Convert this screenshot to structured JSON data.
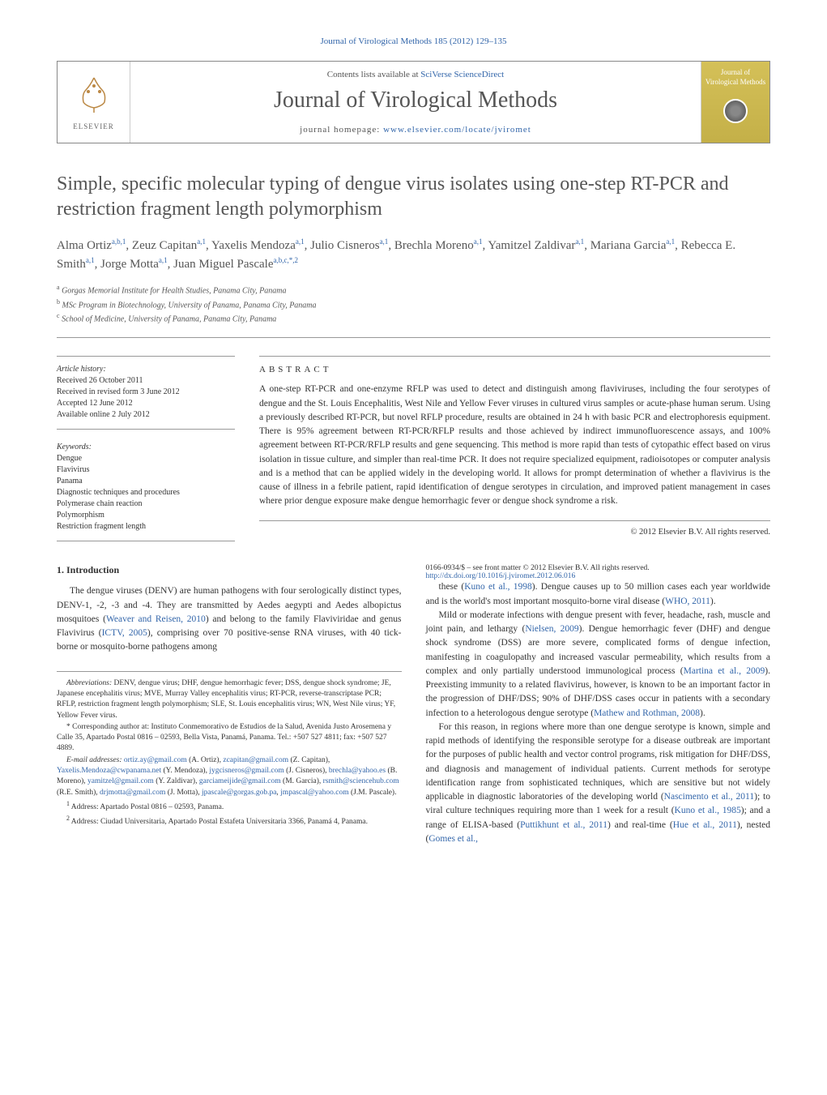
{
  "header": {
    "citation": "Journal of Virological Methods 185 (2012) 129–135",
    "contents_prefix": "Contents lists available at ",
    "contents_link": "SciVerse ScienceDirect",
    "journal_name": "Journal of Virological Methods",
    "homepage_prefix": "journal homepage: ",
    "homepage_link": "www.elsevier.com/locate/jviromet",
    "elsevier_label": "ELSEVIER",
    "cover_text": "Journal of Virological Methods"
  },
  "title": "Simple, specific molecular typing of dengue virus isolates using one-step RT-PCR and restriction fragment length polymorphism",
  "authors_html": "Alma Ortiz<sup>a,b,1</sup>, Zeuz Capitan<sup>a,1</sup>, Yaxelis Mendoza<sup>a,1</sup>, Julio Cisneros<sup>a,1</sup>, Brechla Moreno<sup>a,1</sup>, Yamitzel Zaldivar<sup>a,1</sup>, Mariana Garcia<sup>a,1</sup>, Rebecca E. Smith<sup>a,1</sup>, Jorge Motta<sup>a,1</sup>, Juan Miguel Pascale<sup>a,b,c,*,2</sup>",
  "affiliations": [
    {
      "sup": "a",
      "text": "Gorgas Memorial Institute for Health Studies, Panama City, Panama"
    },
    {
      "sup": "b",
      "text": "MSc Program in Biotechnology, University of Panama, Panama City, Panama"
    },
    {
      "sup": "c",
      "text": "School of Medicine, University of Panama, Panama City, Panama"
    }
  ],
  "article_history": {
    "label": "Article history:",
    "received": "Received 26 October 2011",
    "revised": "Received in revised form 3 June 2012",
    "accepted": "Accepted 12 June 2012",
    "online": "Available online 2 July 2012"
  },
  "keywords": {
    "label": "Keywords:",
    "items": [
      "Dengue",
      "Flavivirus",
      "Panama",
      "Diagnostic techniques and procedures",
      "Polymerase chain reaction",
      "Polymorphism",
      "Restriction fragment length"
    ]
  },
  "abstract": {
    "heading": "ABSTRACT",
    "text": "A one-step RT-PCR and one-enzyme RFLP was used to detect and distinguish among flaviviruses, including the four serotypes of dengue and the St. Louis Encephalitis, West Nile and Yellow Fever viruses in cultured virus samples or acute-phase human serum. Using a previously described RT-PCR, but novel RFLP procedure, results are obtained in 24 h with basic PCR and electrophoresis equipment. There is 95% agreement between RT-PCR/RFLP results and those achieved by indirect immunofluorescence assays, and 100% agreement between RT-PCR/RFLP results and gene sequencing. This method is more rapid than tests of cytopathic effect based on virus isolation in tissue culture, and simpler than real-time PCR. It does not require specialized equipment, radioisotopes or computer analysis and is a method that can be applied widely in the developing world. It allows for prompt determination of whether a flavivirus is the cause of illness in a febrile patient, rapid identification of dengue serotypes in circulation, and improved patient management in cases where prior dengue exposure make dengue hemorrhagic fever or dengue shock syndrome a risk.",
    "copyright": "© 2012 Elsevier B.V. All rights reserved."
  },
  "intro": {
    "heading": "1. Introduction",
    "p1_pre": "The dengue viruses (DENV) are human pathogens with four serologically distinct types, DENV-1, -2, -3 and -4. They are transmitted by Aedes aegypti and Aedes albopictus mosquitoes (",
    "p1_link1": "Weaver and Reisen, 2010",
    "p1_mid1": ") and belong to the family Flaviviridae and genus Flavivirus (",
    "p1_link2": "ICTV, 2005",
    "p1_mid2": "), comprising over 70 positive-sense RNA viruses, with 40 tick-borne or mosquito-borne pathogens among ",
    "p1_cont": "these (",
    "p1_link3": "Kuno et al., 1998",
    "p1_mid3": "). Dengue causes up to 50 million cases each year worldwide and is the world's most important mosquito-borne viral disease (",
    "p1_link4": "WHO, 2011",
    "p1_end": ").",
    "p2_pre": "Mild or moderate infections with dengue present with fever, headache, rash, muscle and joint pain, and lethargy (",
    "p2_link1": "Nielsen, 2009",
    "p2_mid1": "). Dengue hemorrhagic fever (DHF) and dengue shock syndrome (DSS) are more severe, complicated forms of dengue infection, manifesting in coagulopathy and increased vascular permeability, which results from a complex and only partially understood immunological process (",
    "p2_link2": "Martina et al., 2009",
    "p2_mid2": "). Preexisting immunity to a related flavivirus, however, is known to be an important factor in the progression of DHF/DSS; 90% of DHF/DSS cases occur in patients with a secondary infection to a heterologous dengue serotype (",
    "p2_link3": "Mathew and Rothman, 2008",
    "p2_end": ").",
    "p3_pre": "For this reason, in regions where more than one dengue serotype is known, simple and rapid methods of identifying the responsible serotype for a disease outbreak are important for the purposes of public health and vector control programs, risk mitigation for DHF/DSS, and diagnosis and management of individual patients. Current methods for serotype identification range from sophisticated techniques, which are sensitive but not widely applicable in diagnostic laboratories of the developing world (",
    "p3_link1": "Nascimento et al., 2011",
    "p3_mid1": "); to viral culture techniques requiring more than 1 week for a result (",
    "p3_link2": "Kuno et al., 1985",
    "p3_mid2": "); and a range of ELISA-based (",
    "p3_link3": "Puttikhunt et al., 2011",
    "p3_mid3": ") and real-time (",
    "p3_link4": "Hue et al., 2011",
    "p3_mid4": "), nested (",
    "p3_link5": "Gomes et al.,"
  },
  "footnotes": {
    "abbr_label": "Abbreviations:",
    "abbr_text": " DENV, dengue virus; DHF, dengue hemorrhagic fever; DSS, dengue shock syndrome; JE, Japanese encephalitis virus; MVE, Murray Valley encephalitis virus; RT-PCR, reverse-transcriptase PCR; RFLP, restriction fragment length polymorphism; SLE, St. Louis encephalitis virus; WN, West Nile virus; YF, Yellow Fever virus.",
    "corr_label": "* Corresponding author at:",
    "corr_text": " Instituto Conmemorativo de Estudios de la Salud, Avenida Justo Arosemena y Calle 35, Apartado Postal 0816 – 02593, Bella Vista, Panamá, Panama. Tel.: +507 527 4811; fax: +507 527 4889.",
    "email_label": "E-mail addresses:",
    "emails": [
      {
        "addr": "ortiz.ay@gmail.com",
        "who": " (A. Ortiz), "
      },
      {
        "addr": "zcapitan@gmail.com",
        "who": " (Z. Capitan), "
      },
      {
        "addr": "Yaxelis.Mendoza@cwpanama.net",
        "who": " (Y. Mendoza), "
      },
      {
        "addr": "jygcisneros@gmail.com",
        "who": " (J. Cisneros), "
      },
      {
        "addr": "brechla@yahoo.es",
        "who": " (B. Moreno), "
      },
      {
        "addr": "yamitzel@gmail.com",
        "who": " (Y. Zaldivar), "
      },
      {
        "addr": "garciameijide@gmail.com",
        "who": " (M. Garcia), "
      },
      {
        "addr": "rsmith@sciencehub.com",
        "who": " (R.E. Smith), "
      },
      {
        "addr": "drjmotta@gmail.com",
        "who": " (J. Motta), "
      },
      {
        "addr": "jpascale@gorgas.gob.pa",
        "who": ", "
      },
      {
        "addr": "jmpascal@yahoo.com",
        "who": " (J.M. Pascale)."
      }
    ],
    "addr1_label": "1",
    "addr1": " Address: Apartado Postal 0816 – 02593, Panama.",
    "addr2_label": "2",
    "addr2": " Address: Ciudad Universitaria, Apartado Postal Estafeta Universitaria 3366, Panamá 4, Panama."
  },
  "footer": {
    "issn": "0166-0934/$ – see front matter © 2012 Elsevier B.V. All rights reserved.",
    "doi": "http://dx.doi.org/10.1016/j.jviromet.2012.06.016"
  }
}
